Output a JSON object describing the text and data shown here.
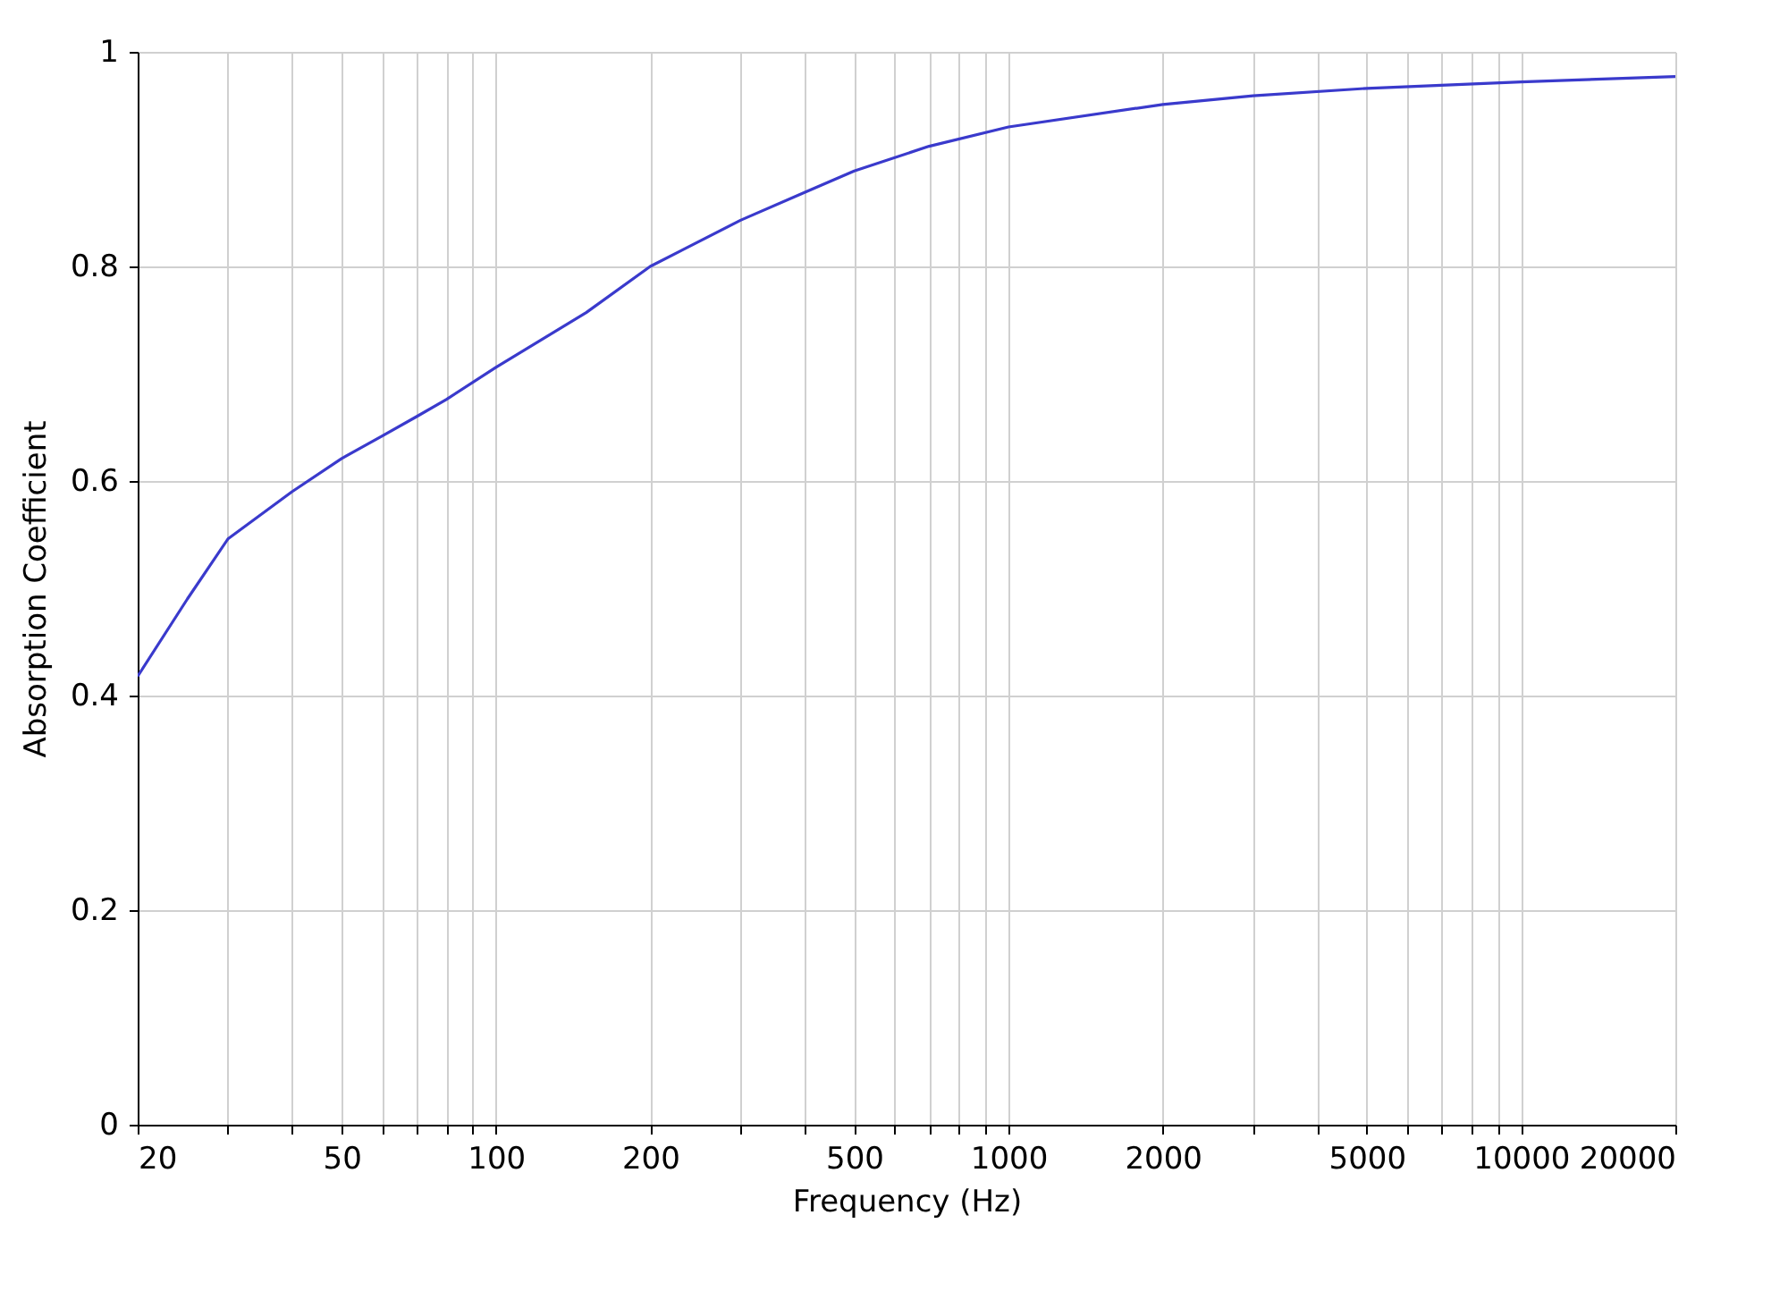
{
  "chart_data": {
    "type": "line",
    "xlabel": "Frequency (Hz)",
    "ylabel": "Absorption Coefficient",
    "log": "x",
    "grid": true,
    "marker": "none",
    "line_style": "solid",
    "xlim": [
      20,
      20000
    ],
    "ylim": [
      0,
      1
    ],
    "xticks": [
      20,
      {
        "value": 30,
        "label": null
      },
      {
        "value": 40,
        "label": null
      },
      50,
      {
        "value": 60,
        "label": null
      },
      {
        "value": 70,
        "label": null
      },
      {
        "value": 80,
        "label": null
      },
      {
        "value": 90,
        "label": null
      },
      100,
      200,
      {
        "value": 300,
        "label": null
      },
      {
        "value": 400,
        "label": null
      },
      500,
      {
        "value": 600,
        "label": null
      },
      {
        "value": 700,
        "label": null
      },
      {
        "value": 800,
        "label": null
      },
      {
        "value": 900,
        "label": null
      },
      1000,
      2000,
      {
        "value": 3000,
        "label": null
      },
      {
        "value": 4000,
        "label": null
      },
      5000,
      {
        "value": 6000,
        "label": null
      },
      {
        "value": 7000,
        "label": null
      },
      {
        "value": 8000,
        "label": null
      },
      {
        "value": 9000,
        "label": null
      },
      10000,
      20000
    ],
    "yticks": [
      0,
      0.2,
      0.4,
      0.6,
      0.8,
      1
    ],
    "x": [
      20,
      25,
      30,
      40,
      50,
      60,
      70,
      80,
      100,
      150,
      200,
      300,
      400,
      500,
      700,
      1000,
      2000,
      3000,
      5000,
      10000,
      20000
    ],
    "series": [
      {
        "color": "#3a3acc",
        "values": [
          0.418,
          0.49,
          0.546,
          0.59,
          0.621,
          0.642,
          0.66,
          0.676,
          0.706,
          0.757,
          0.8,
          0.843,
          0.869,
          0.889,
          0.912,
          0.93,
          0.951,
          0.959,
          0.966,
          0.972,
          0.977
        ]
      }
    ]
  }
}
